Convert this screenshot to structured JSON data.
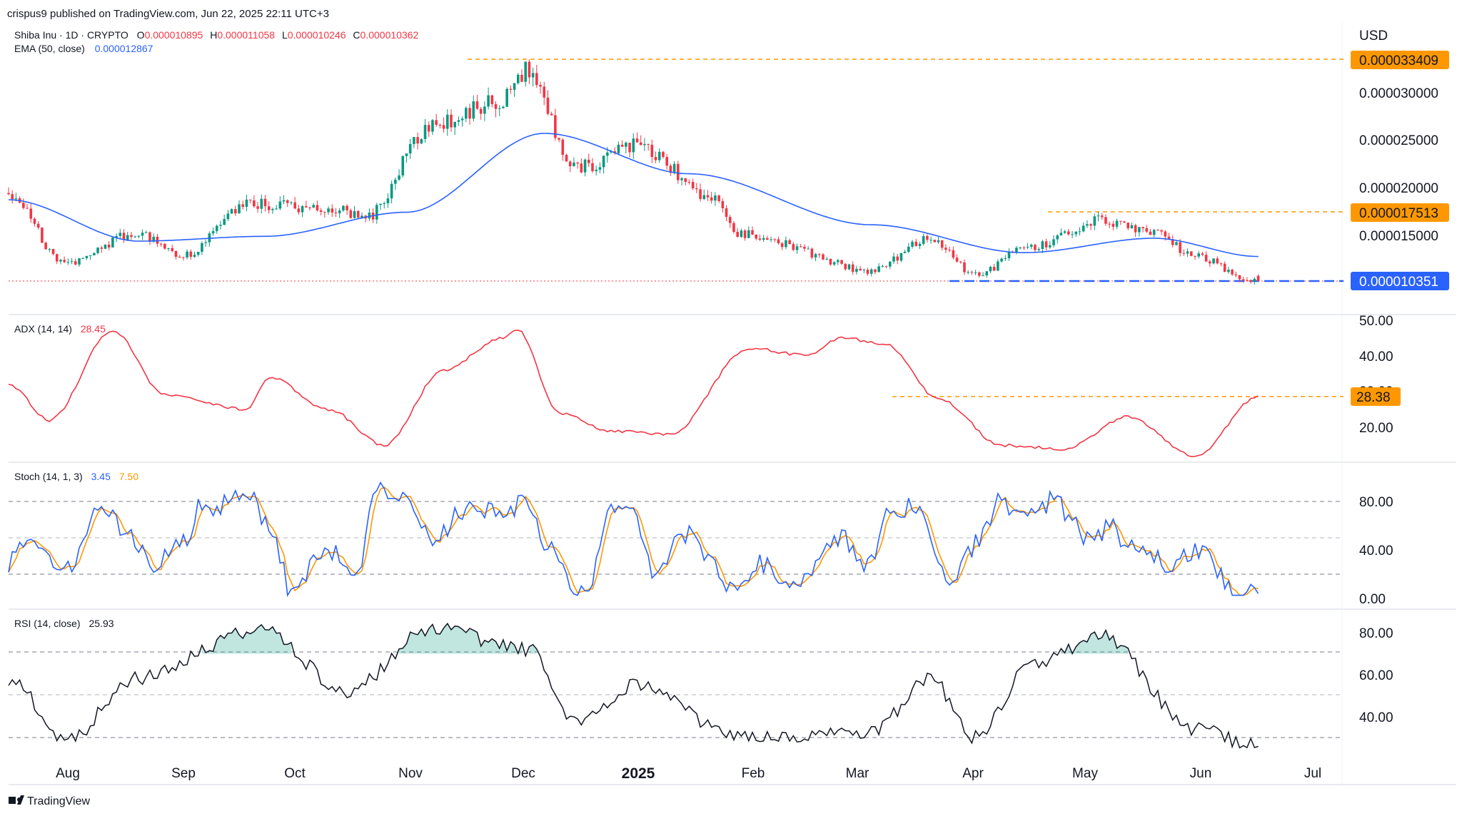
{
  "header": {
    "publish_line": "crispus9 published on TradingView.com, Jun 22, 2025 22:11 UTC+3"
  },
  "legend": {
    "symbol": "Shiba Inu · 1D · CRYPTO",
    "ohlc": [
      {
        "k": "O",
        "v": "0.000010895"
      },
      {
        "k": "H",
        "v": "0.000011058"
      },
      {
        "k": "L",
        "v": "0.000010246"
      },
      {
        "k": "C",
        "v": "0.000010362"
      }
    ],
    "ema_label": "EMA (50, close)",
    "ema_value": "0.000012867"
  },
  "price_axis": {
    "currency": "USD",
    "ticks": [
      "0.000030000",
      "0.000025000",
      "0.000020000",
      "0.000015000"
    ],
    "tags": {
      "high": "0.000033409",
      "resistance": "0.000017513",
      "last": "0.000010351"
    }
  },
  "adx_pane": {
    "label": "ADX (14, 14)",
    "value": "28.45",
    "ticks": [
      "50.00",
      "40.00",
      "30.00",
      "20.00"
    ],
    "tag": "28.38"
  },
  "stoch_pane": {
    "label": "Stoch (14, 1, 3)",
    "k_value": "3.45",
    "d_value": "7.50",
    "ticks": [
      "80.00",
      "40.00",
      "0.00"
    ]
  },
  "rsi_pane": {
    "label": "RSI (14, close)",
    "value": "25.93",
    "ticks": [
      "80.00",
      "60.00",
      "40.00"
    ]
  },
  "time_axis": {
    "labels": [
      "Aug",
      "Sep",
      "Oct",
      "Nov",
      "Dec",
      "2025",
      "Feb",
      "Mar",
      "Apr",
      "May",
      "Jun",
      "Jul"
    ]
  },
  "footer": {
    "logo_text": "TradingView"
  },
  "colors": {
    "up": "#089981",
    "down": "#f23645",
    "ema": "#2962ff",
    "adx": "#f23645",
    "stoch_k": "#2962ff",
    "stoch_d": "#ff9800",
    "rsi": "#131722",
    "tag_orange": "#ff9800",
    "tag_blue": "#2962ff",
    "grid_dash": "#9598a1",
    "separator": "#e0e3eb"
  },
  "chart_data": [
    {
      "type": "candlestick",
      "title": "Shiba Inu · 1D · CRYPTO",
      "ylabel": "USD",
      "date_range": [
        "2024-07-21",
        "2025-06-22"
      ],
      "key_levels": {
        "cycle_high": 3.3409e-05,
        "resistance": 1.7513e-05,
        "last_price": 1.0351e-05
      },
      "ohlc_last": {
        "open": 1.0895e-05,
        "high": 1.1058e-05,
        "low": 1.0246e-05,
        "close": 1.0362e-05
      },
      "price_anchors": [
        {
          "date": "2024-07-21",
          "close": 1.95e-05
        },
        {
          "date": "2024-08-05",
          "close": 1.22e-05
        },
        {
          "date": "2024-08-24",
          "close": 1.52e-05
        },
        {
          "date": "2024-09-06",
          "close": 1.3e-05
        },
        {
          "date": "2024-09-24",
          "close": 1.84e-05
        },
        {
          "date": "2024-10-14",
          "close": 1.8e-05
        },
        {
          "date": "2024-10-25",
          "close": 1.7e-05
        },
        {
          "date": "2024-11-12",
          "close": 2.66e-05
        },
        {
          "date": "2024-11-30",
          "close": 2.9e-05
        },
        {
          "date": "2024-12-08",
          "close": 3.25e-05
        },
        {
          "date": "2024-12-20",
          "close": 2.2e-05
        },
        {
          "date": "2025-01-06",
          "close": 2.45e-05
        },
        {
          "date": "2025-01-27",
          "close": 1.9e-05
        },
        {
          "date": "2025-02-03",
          "close": 1.52e-05
        },
        {
          "date": "2025-03-10",
          "close": 1.15e-05
        },
        {
          "date": "2025-03-26",
          "close": 1.48e-05
        },
        {
          "date": "2025-04-07",
          "close": 1.1e-05
        },
        {
          "date": "2025-04-22",
          "close": 1.4e-05
        },
        {
          "date": "2025-05-11",
          "close": 1.66e-05
        },
        {
          "date": "2025-05-26",
          "close": 1.52e-05
        },
        {
          "date": "2025-06-05",
          "close": 1.28e-05
        },
        {
          "date": "2025-06-22",
          "close": 1.04e-05
        }
      ],
      "ema50_anchors": [
        {
          "date": "2024-07-21",
          "value": 1.88e-05
        },
        {
          "date": "2024-08-25",
          "value": 1.45e-05
        },
        {
          "date": "2024-09-28",
          "value": 1.5e-05
        },
        {
          "date": "2024-11-05",
          "value": 1.75e-05
        },
        {
          "date": "2024-12-12",
          "value": 2.57e-05
        },
        {
          "date": "2025-01-20",
          "value": 2.15e-05
        },
        {
          "date": "2025-03-10",
          "value": 1.62e-05
        },
        {
          "date": "2025-04-20",
          "value": 1.33e-05
        },
        {
          "date": "2025-05-25",
          "value": 1.48e-05
        },
        {
          "date": "2025-06-22",
          "value": 1.29e-05
        }
      ]
    },
    {
      "type": "line",
      "title": "ADX (14, 14)",
      "series": [
        {
          "name": "ADX",
          "values_anchors": [
            {
              "date": "2024-07-21",
              "value": 32
            },
            {
              "date": "2024-08-01",
              "value": 22
            },
            {
              "date": "2024-08-18",
              "value": 47
            },
            {
              "date": "2024-09-01",
              "value": 29
            },
            {
              "date": "2024-09-23",
              "value": 25
            },
            {
              "date": "2024-09-29",
              "value": 34
            },
            {
              "date": "2024-10-15",
              "value": 25
            },
            {
              "date": "2024-10-30",
              "value": 15
            },
            {
              "date": "2024-11-15",
              "value": 36
            },
            {
              "date": "2024-12-01",
              "value": 45
            },
            {
              "date": "2024-12-05",
              "value": 47
            },
            {
              "date": "2024-12-16",
              "value": 24
            },
            {
              "date": "2024-12-30",
              "value": 19
            },
            {
              "date": "2025-01-15",
              "value": 18
            },
            {
              "date": "2025-02-05",
              "value": 42
            },
            {
              "date": "2025-02-21",
              "value": 40
            },
            {
              "date": "2025-03-02",
              "value": 45
            },
            {
              "date": "2025-03-14",
              "value": 43
            },
            {
              "date": "2025-03-28",
              "value": 28
            },
            {
              "date": "2025-04-14",
              "value": 15
            },
            {
              "date": "2025-05-01",
              "value": 14
            },
            {
              "date": "2025-05-18",
              "value": 23
            },
            {
              "date": "2025-06-05",
              "value": 12
            },
            {
              "date": "2025-06-22",
              "value": 28.45
            }
          ]
        }
      ],
      "ylim": [
        10,
        50
      ],
      "reference_level": 28.38
    },
    {
      "type": "line",
      "title": "Stoch (14, 1, 3)",
      "series": [
        {
          "name": "%K",
          "last": 3.45
        },
        {
          "name": "%D",
          "last": 7.5
        }
      ],
      "ylim": [
        0,
        100
      ],
      "bands": [
        80,
        50,
        20
      ]
    },
    {
      "type": "line",
      "title": "RSI (14, close)",
      "series": [
        {
          "name": "RSI",
          "last": 25.93,
          "values_anchors": [
            {
              "date": "2024-07-21",
              "value": 58
            },
            {
              "date": "2024-08-06",
              "value": 29
            },
            {
              "date": "2024-08-24",
              "value": 58
            },
            {
              "date": "2024-09-27",
              "value": 82
            },
            {
              "date": "2024-10-20",
              "value": 52
            },
            {
              "date": "2024-11-12",
              "value": 82
            },
            {
              "date": "2024-12-08",
              "value": 72
            },
            {
              "date": "2024-12-20",
              "value": 38
            },
            {
              "date": "2025-01-06",
              "value": 55
            },
            {
              "date": "2025-02-03",
              "value": 30
            },
            {
              "date": "2025-03-10",
              "value": 33
            },
            {
              "date": "2025-03-26",
              "value": 58
            },
            {
              "date": "2025-04-07",
              "value": 30
            },
            {
              "date": "2025-04-22",
              "value": 65
            },
            {
              "date": "2025-05-11",
              "value": 78
            },
            {
              "date": "2025-06-05",
              "value": 34
            },
            {
              "date": "2025-06-22",
              "value": 25.93
            }
          ]
        }
      ],
      "ylim": [
        25,
        85
      ],
      "bands": [
        70,
        50,
        30
      ]
    }
  ]
}
